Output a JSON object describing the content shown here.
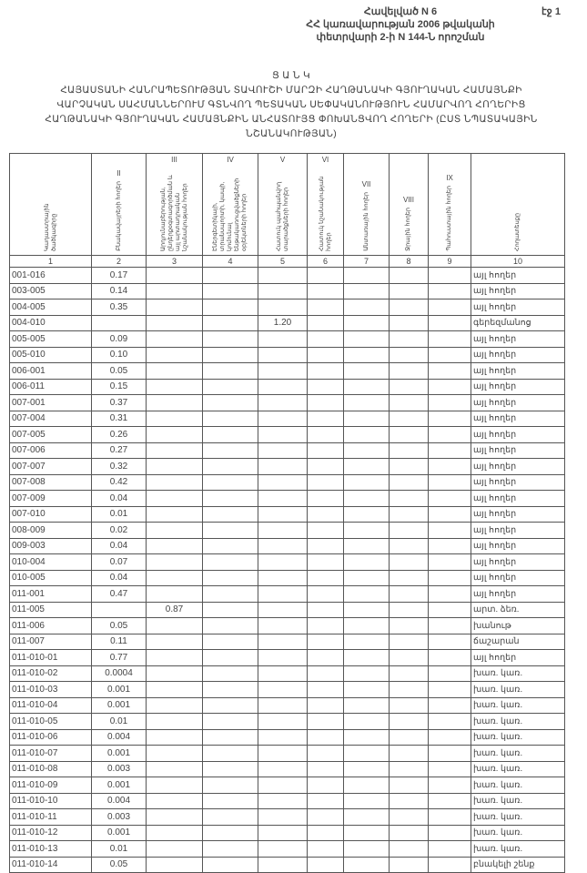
{
  "header": {
    "line1": "Հավելված N 6",
    "line2": "ՀՀ կառավարության 2006 թվականի",
    "line3": "փետրվարի 2-ի N 144-Ն որոշման",
    "page": "էջ 1"
  },
  "title": {
    "heading": "Ց Ա Ն Կ",
    "text": "ՀԱՅԱՍՏԱՆԻ ՀԱՆՐԱՊԵՏՈՒԹՅԱՆ ՏԱՎՈՒՇԻ ՄԱՐԶԻ ՀԱՂԹԱՆԱԿԻ ԳՅՈՒՂԱԿԱՆ ՀԱՄԱՅՆՔԻ ՎԱՐՉԱԿԱՆ ՍԱՀՄԱՆՆԵՐՈՒՄ ԳՏՆՎՈՂ ՊԵՏԱԿԱՆ ՍԵՓԱԿԱՆՈՒԹՅՈՒՆ ՀԱՄԱՐՎՈՂ ՀՈՂԵՐԻՑ ՀԱՂԹԱՆԱԿԻ ԳՅՈՒՂԱԿԱՆ ՀԱՄԱՅՆՔԻՆ ԱՆՀԱՏՈՒՅՑ ՓՈԽԱՆՑՎՈՂ ՀՈՂԵՐԻ (ԸՍՏ ՆՊԱՏԱԿԱՅԻՆ ՆՇԱՆԱԿՈՒԹՅԱՆ)"
  },
  "columns": [
    {
      "roman": "",
      "label": "Կադաստրային ծածկագիրը",
      "num": "1"
    },
    {
      "roman": "II",
      "label": "Բնակավայրերի հողեր",
      "num": "2"
    },
    {
      "roman": "III",
      "label": "Արդյունաբերության, ընդերքօգտագործման և այլ արտադրական նշանակության հողեր",
      "num": "3"
    },
    {
      "roman": "IV",
      "label": "Էներգետիկայի, տրանսպորտի, կապի, կոմունալ ենթակառուցվածքների օբյեկտների հողեր",
      "num": "4"
    },
    {
      "roman": "V",
      "label": "Հատուկ պահպանվող տարածքների հողեր",
      "num": "5"
    },
    {
      "roman": "VI",
      "label": "Հատուկ նշանակության հողեր",
      "num": "6"
    },
    {
      "roman": "VII",
      "label": "Անտառային հողեր",
      "num": "7"
    },
    {
      "roman": "VIII",
      "label": "Ջրային հողեր",
      "num": "8"
    },
    {
      "roman": "IX",
      "label": "Պահուստային հողեր",
      "num": "9"
    },
    {
      "roman": "",
      "label": "Հողատեսքը",
      "num": "10"
    }
  ],
  "rows": [
    {
      "code": "001-016",
      "c2": "0.17",
      "c3": "",
      "c5": "",
      "type": "այլ հողեր"
    },
    {
      "code": "003-005",
      "c2": "0.14",
      "c3": "",
      "c5": "",
      "type": "այլ հողեր"
    },
    {
      "code": "004-005",
      "c2": "0.35",
      "c3": "",
      "c5": "",
      "type": "այլ հողեր"
    },
    {
      "code": "004-010",
      "c2": "",
      "c3": "",
      "c5": "1.20",
      "type": "գերեզմանոց"
    },
    {
      "code": "005-005",
      "c2": "0.09",
      "c3": "",
      "c5": "",
      "type": "այլ հողեր"
    },
    {
      "code": "005-010",
      "c2": "0.10",
      "c3": "",
      "c5": "",
      "type": "այլ հողեր"
    },
    {
      "code": "006-001",
      "c2": "0.05",
      "c3": "",
      "c5": "",
      "type": "այլ հողեր"
    },
    {
      "code": "006-011",
      "c2": "0.15",
      "c3": "",
      "c5": "",
      "type": "այլ հողեր"
    },
    {
      "code": "007-001",
      "c2": "0.37",
      "c3": "",
      "c5": "",
      "type": "այլ հողեր"
    },
    {
      "code": "007-004",
      "c2": "0.31",
      "c3": "",
      "c5": "",
      "type": "այլ հողեր"
    },
    {
      "code": "007-005",
      "c2": "0.26",
      "c3": "",
      "c5": "",
      "type": "այլ հողեր"
    },
    {
      "code": "007-006",
      "c2": "0.27",
      "c3": "",
      "c5": "",
      "type": "այլ հողեր"
    },
    {
      "code": "007-007",
      "c2": "0.32",
      "c3": "",
      "c5": "",
      "type": "այլ հողեր"
    },
    {
      "code": "007-008",
      "c2": "0.42",
      "c3": "",
      "c5": "",
      "type": "այլ հողեր"
    },
    {
      "code": "007-009",
      "c2": "0.04",
      "c3": "",
      "c5": "",
      "type": "այլ հողեր"
    },
    {
      "code": "007-010",
      "c2": "0.01",
      "c3": "",
      "c5": "",
      "type": "այլ հողեր"
    },
    {
      "code": "008-009",
      "c2": "0.02",
      "c3": "",
      "c5": "",
      "type": "այլ հողեր"
    },
    {
      "code": "009-003",
      "c2": "0.04",
      "c3": "",
      "c5": "",
      "type": "այլ հողեր"
    },
    {
      "code": "010-004",
      "c2": "0.07",
      "c3": "",
      "c5": "",
      "type": "այլ հողեր"
    },
    {
      "code": "010-005",
      "c2": "0.04",
      "c3": "",
      "c5": "",
      "type": "այլ հողեր"
    },
    {
      "code": "011-001",
      "c2": "0.47",
      "c3": "",
      "c5": "",
      "type": "այլ հողեր"
    },
    {
      "code": "011-005",
      "c2": "",
      "c3": "0.87",
      "c5": "",
      "type": "արտ. ձեռ."
    },
    {
      "code": "011-006",
      "c2": "0.05",
      "c3": "",
      "c5": "",
      "type": "խանութ"
    },
    {
      "code": "011-007",
      "c2": "0.11",
      "c3": "",
      "c5": "",
      "type": "ճաշարան"
    },
    {
      "code": "011-010-01",
      "c2": "0.77",
      "c3": "",
      "c5": "",
      "type": "այլ հողեր"
    },
    {
      "code": "011-010-02",
      "c2": "0.0004",
      "c3": "",
      "c5": "",
      "type": "խառ. կառ."
    },
    {
      "code": "011-010-03",
      "c2": "0.001",
      "c3": "",
      "c5": "",
      "type": "խառ. կառ."
    },
    {
      "code": "011-010-04",
      "c2": "0.001",
      "c3": "",
      "c5": "",
      "type": "խառ. կառ."
    },
    {
      "code": "011-010-05",
      "c2": "0.01",
      "c3": "",
      "c5": "",
      "type": "խառ. կառ."
    },
    {
      "code": "011-010-06",
      "c2": "0.004",
      "c3": "",
      "c5": "",
      "type": "խառ. կառ."
    },
    {
      "code": "011-010-07",
      "c2": "0.001",
      "c3": "",
      "c5": "",
      "type": "խառ. կառ."
    },
    {
      "code": "011-010-08",
      "c2": "0.003",
      "c3": "",
      "c5": "",
      "type": "խառ. կառ."
    },
    {
      "code": "011-010-09",
      "c2": "0.001",
      "c3": "",
      "c5": "",
      "type": "խառ. կառ."
    },
    {
      "code": "011-010-10",
      "c2": "0.004",
      "c3": "",
      "c5": "",
      "type": "խառ. կառ."
    },
    {
      "code": "011-010-11",
      "c2": "0.003",
      "c3": "",
      "c5": "",
      "type": "խառ. կառ."
    },
    {
      "code": "011-010-12",
      "c2": "0.001",
      "c3": "",
      "c5": "",
      "type": "խառ. կառ."
    },
    {
      "code": "011-010-13",
      "c2": "0.01",
      "c3": "",
      "c5": "",
      "type": "խառ. կառ."
    },
    {
      "code": "011-010-14",
      "c2": "0.05",
      "c3": "",
      "c5": "",
      "type": "բնակելի շենք"
    }
  ]
}
